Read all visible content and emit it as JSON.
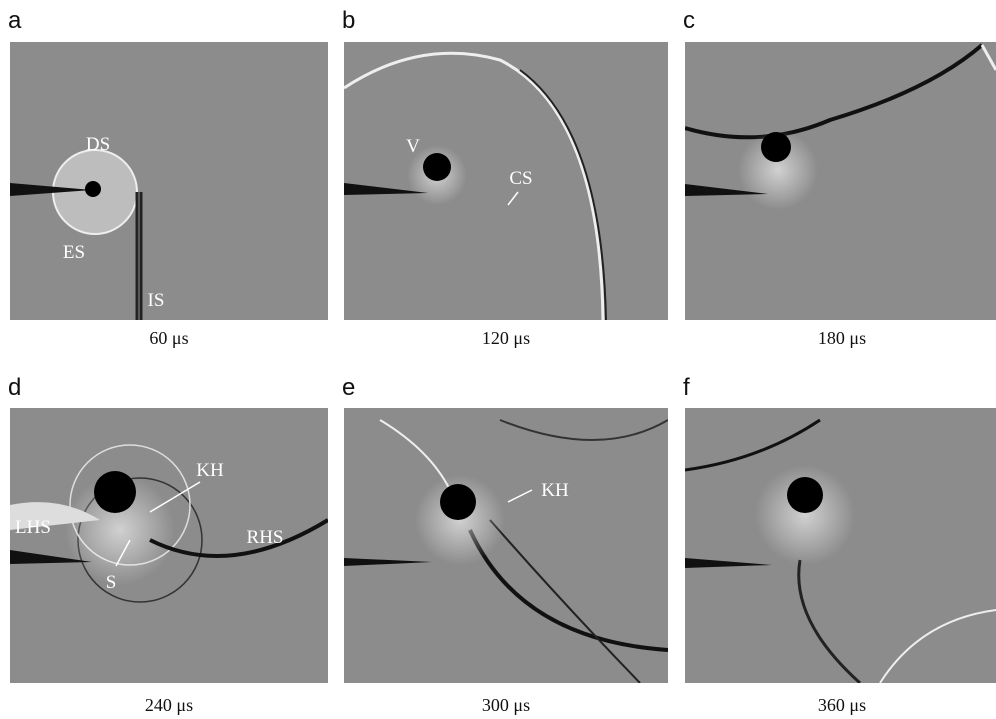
{
  "panels": [
    {
      "label": "a",
      "time": "60 μs",
      "annotations": [
        "DS",
        "ES",
        "IS"
      ]
    },
    {
      "label": "b",
      "time": "120 μs",
      "annotations": [
        "V",
        "CS"
      ]
    },
    {
      "label": "c",
      "time": "180 μs"
    },
    {
      "label": "d",
      "time": "240 μs",
      "annotations": [
        "KH",
        "LHS",
        "RHS",
        "S"
      ]
    },
    {
      "label": "e",
      "time": "300 μs",
      "annotations": [
        "KH"
      ]
    },
    {
      "label": "f",
      "time": "360 μs"
    }
  ]
}
